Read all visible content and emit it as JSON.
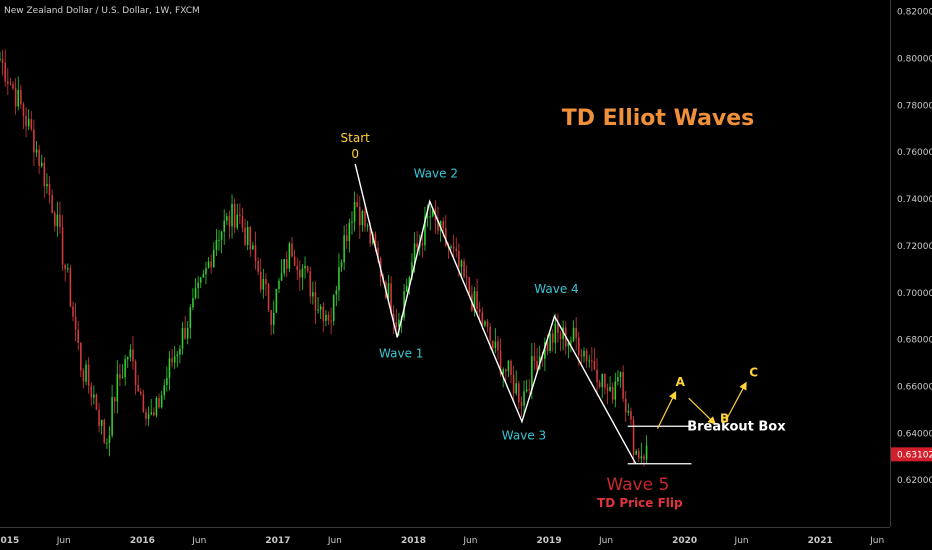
{
  "header": {
    "symbol_title": "New Zealand Dollar / U.S. Dollar, 1W, FXCM"
  },
  "colors": {
    "background": "#000000",
    "bull": "#2fd12f",
    "bear": "#d33b3b",
    "wave_line": "#ffffff",
    "title": "#f0903a",
    "wave_label": "#38c6d6",
    "start_label": "#ffd23a",
    "abc_label": "#ffd23a",
    "wave5_label": "#c8282d",
    "td_price_flip": "#e0343a",
    "breakout_label": "#ffffff",
    "current_price_bg": "#d11f2c",
    "axis_text": "#c8c8c8"
  },
  "annotations": {
    "title": "TD Elliot Waves",
    "start": "Start",
    "zero": "0",
    "wave1": "Wave 1",
    "wave2": "Wave 2",
    "wave3": "Wave 3",
    "wave4": "Wave 4",
    "wave5": "Wave 5",
    "td_price_flip": "TD Price Flip",
    "breakout_box": "Breakout Box",
    "a": "A",
    "b": "B",
    "c": "C"
  },
  "price_axis": {
    "ticks": [
      "0.82000",
      "0.80000",
      "0.78000",
      "0.76000",
      "0.74000",
      "0.72000",
      "0.70000",
      "0.68000",
      "0.66000",
      "0.64000",
      "0.62000"
    ],
    "current_price": "0.63102"
  },
  "chart_data": {
    "type": "candlestick",
    "title": "TD Elliot Waves",
    "symbol": "New Zealand Dollar / U.S. Dollar",
    "interval": "1W",
    "source": "FXCM",
    "ylim": [
      0.6,
      0.825
    ],
    "xlim": [
      2014.95,
      2021.5
    ],
    "x_tick_labels": [
      "2015",
      "Jun",
      "2016",
      "Jun",
      "2017",
      "Jun",
      "2018",
      "Jun",
      "2019",
      "Jun",
      "2020",
      "Jun",
      "2021",
      "Jun"
    ],
    "x_tick_values": [
      2015.0,
      2015.42,
      2016.0,
      2016.42,
      2017.0,
      2017.42,
      2018.0,
      2018.42,
      2019.0,
      2019.42,
      2020.0,
      2020.42,
      2021.0,
      2021.42
    ],
    "wave_path": [
      {
        "label": "0",
        "x": 2017.57,
        "y": 0.755
      },
      {
        "label": "Wave 1",
        "x": 2017.88,
        "y": 0.681
      },
      {
        "label": "Wave 2",
        "x": 2018.12,
        "y": 0.739
      },
      {
        "label": "Wave 3",
        "x": 2018.8,
        "y": 0.645
      },
      {
        "label": "Wave 4",
        "x": 2019.04,
        "y": 0.69
      },
      {
        "label": "Wave 5",
        "x": 2019.64,
        "y": 0.627
      }
    ],
    "breakout_box": {
      "top": 0.643,
      "bottom": 0.627,
      "x_start": 2019.58,
      "x_end": 2020.05
    },
    "projection": [
      {
        "label": "A",
        "x": 2019.96,
        "y": 0.659
      },
      {
        "label": "B",
        "x": 2020.25,
        "y": 0.646
      },
      {
        "label": "C",
        "x": 2020.48,
        "y": 0.663
      }
    ],
    "anchors": [
      {
        "x": 2014.95,
        "y": 0.8
      },
      {
        "x": 2015.1,
        "y": 0.78
      },
      {
        "x": 2015.2,
        "y": 0.765
      },
      {
        "x": 2015.35,
        "y": 0.735
      },
      {
        "x": 2015.45,
        "y": 0.705
      },
      {
        "x": 2015.55,
        "y": 0.668
      },
      {
        "x": 2015.65,
        "y": 0.655
      },
      {
        "x": 2015.73,
        "y": 0.635
      },
      {
        "x": 2015.8,
        "y": 0.658
      },
      {
        "x": 2015.9,
        "y": 0.675
      },
      {
        "x": 2016.0,
        "y": 0.655
      },
      {
        "x": 2016.08,
        "y": 0.645
      },
      {
        "x": 2016.2,
        "y": 0.668
      },
      {
        "x": 2016.35,
        "y": 0.69
      },
      {
        "x": 2016.45,
        "y": 0.705
      },
      {
        "x": 2016.55,
        "y": 0.725
      },
      {
        "x": 2016.7,
        "y": 0.735
      },
      {
        "x": 2016.85,
        "y": 0.71
      },
      {
        "x": 2016.95,
        "y": 0.692
      },
      {
        "x": 2017.1,
        "y": 0.72
      },
      {
        "x": 2017.3,
        "y": 0.695
      },
      {
        "x": 2017.4,
        "y": 0.69
      },
      {
        "x": 2017.45,
        "y": 0.715
      },
      {
        "x": 2017.57,
        "y": 0.74
      },
      {
        "x": 2017.7,
        "y": 0.72
      },
      {
        "x": 2017.88,
        "y": 0.688
      },
      {
        "x": 2018.0,
        "y": 0.715
      },
      {
        "x": 2018.12,
        "y": 0.733
      },
      {
        "x": 2018.3,
        "y": 0.715
      },
      {
        "x": 2018.45,
        "y": 0.695
      },
      {
        "x": 2018.6,
        "y": 0.675
      },
      {
        "x": 2018.8,
        "y": 0.655
      },
      {
        "x": 2018.9,
        "y": 0.672
      },
      {
        "x": 2019.04,
        "y": 0.682
      },
      {
        "x": 2019.2,
        "y": 0.68
      },
      {
        "x": 2019.35,
        "y": 0.668
      },
      {
        "x": 2019.45,
        "y": 0.655
      },
      {
        "x": 2019.52,
        "y": 0.67
      },
      {
        "x": 2019.58,
        "y": 0.648
      },
      {
        "x": 2019.64,
        "y": 0.632
      },
      {
        "x": 2019.72,
        "y": 0.632
      }
    ]
  }
}
